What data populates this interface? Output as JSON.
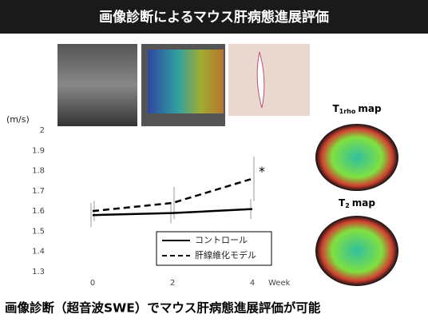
{
  "header": {
    "title": "画像診断によるマウス肝病態進展評価"
  },
  "chart_data": {
    "type": "line",
    "y_label": "(m/s)",
    "x_label": "Week",
    "categories": [
      "0",
      "2",
      "4"
    ],
    "series": [
      {
        "name": "コントロール",
        "color": "#000000",
        "dash": "solid",
        "values": [
          1.58,
          1.59,
          1.61
        ],
        "errors": [
          0.06,
          0.05,
          0.05
        ]
      },
      {
        "name": "肝線維化モデル",
        "color": "#000000",
        "dash": "dashed",
        "values": [
          1.6,
          1.64,
          1.76
        ],
        "errors": [
          0.05,
          0.08,
          0.11
        ]
      }
    ],
    "ylim": [
      1.3,
      2
    ],
    "yticks": [
      {
        "value": 1.3,
        "label": "1.3"
      },
      {
        "value": 1.4,
        "label": "1.4"
      },
      {
        "value": 1.5,
        "label": "1.5"
      },
      {
        "value": 1.6,
        "label": "1.6"
      },
      {
        "value": 1.7,
        "label": "1.7"
      },
      {
        "value": 1.8,
        "label": "1.8"
      },
      {
        "value": 1.9,
        "label": "1.9"
      },
      2
    ],
    "grid": false,
    "annotation": "*"
  },
  "maps": [
    {
      "main": "T",
      "sub": "1rho",
      "rest": "map"
    },
    {
      "main": "T",
      "sub": "2",
      "rest": "map"
    }
  ],
  "footer": {
    "text": "画像診断（超音波SWE）でマウス肝病態進展評価が可能"
  }
}
